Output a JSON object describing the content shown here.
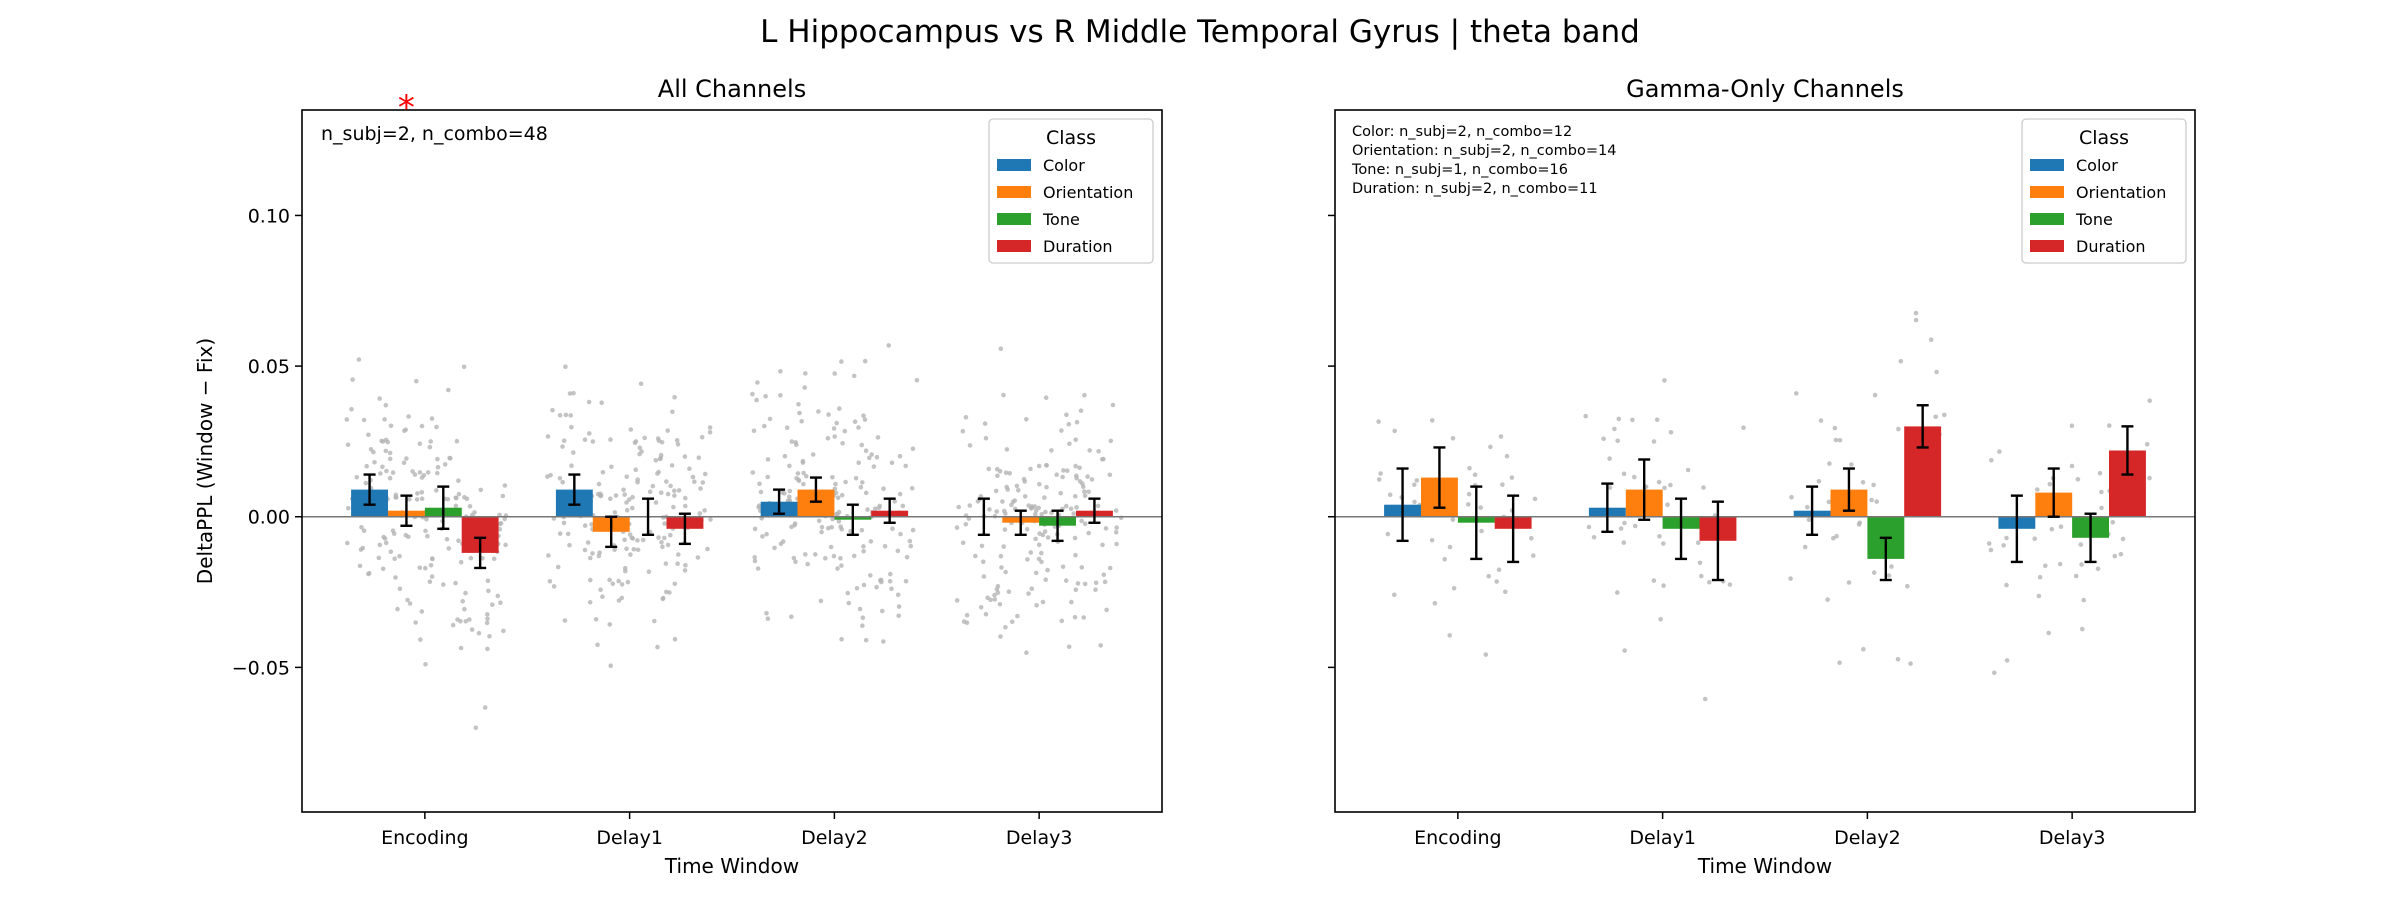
{
  "figure_title": "L Hippocampus vs R Middle Temporal Gyrus  |  theta band",
  "colors": {
    "Color": "#1f77b4",
    "Orientation": "#ff7f0e",
    "Tone": "#2ca02c",
    "Duration": "#d62728",
    "points": "#b4b4b4",
    "significance": "#ff0000"
  },
  "chart_data": [
    {
      "type": "bar",
      "title": "All Channels",
      "xlabel": "Time Window",
      "ylabel": "DeltaPPL (Window − Fix)",
      "ylim": [
        -0.098,
        0.135
      ],
      "y_ticks": [
        0.1,
        0.05,
        0.0,
        -0.05
      ],
      "y_tick_labels": [
        "0.10",
        "0.05",
        "0.00",
        "−0.05"
      ],
      "categories": [
        "Encoding",
        "Delay1",
        "Delay2",
        "Delay3"
      ],
      "legend_title": "Class",
      "legend_position": "top-right",
      "annotation": [
        "n_subj=2, n_combo=48"
      ],
      "significance_marker": "*",
      "significance": [
        {
          "category": "Encoding",
          "series": "Orientation"
        }
      ],
      "series": [
        {
          "name": "Color",
          "values": [
            0.009,
            0.009,
            0.005,
            0.0
          ],
          "errors": [
            0.005,
            0.005,
            0.004,
            0.006
          ]
        },
        {
          "name": "Orientation",
          "values": [
            0.002,
            -0.005,
            0.009,
            -0.002
          ],
          "errors": [
            0.005,
            0.005,
            0.004,
            0.004
          ]
        },
        {
          "name": "Tone",
          "values": [
            0.003,
            0.0,
            -0.001,
            -0.003
          ],
          "errors": [
            0.007,
            0.006,
            0.005,
            0.005
          ]
        },
        {
          "name": "Duration",
          "values": [
            -0.012,
            -0.004,
            0.002,
            0.002
          ],
          "errors": [
            0.005,
            0.005,
            0.004,
            0.004
          ]
        }
      ]
    },
    {
      "type": "bar",
      "title": "Gamma-Only Channels",
      "xlabel": "Time Window",
      "ylabel": "",
      "ylim": [
        -0.098,
        0.135
      ],
      "y_ticks": [
        0.1,
        0.05,
        0.0,
        -0.05
      ],
      "y_tick_labels": [
        "",
        "",
        "",
        ""
      ],
      "categories": [
        "Encoding",
        "Delay1",
        "Delay2",
        "Delay3"
      ],
      "legend_title": "Class",
      "legend_position": "top-right",
      "annotation": [
        "Color: n_subj=2, n_combo=12",
        "Orientation: n_subj=2, n_combo=14",
        "Tone: n_subj=1, n_combo=16",
        "Duration: n_subj=2, n_combo=11"
      ],
      "significance": [],
      "series": [
        {
          "name": "Color",
          "values": [
            0.004,
            0.003,
            0.002,
            -0.004
          ],
          "errors": [
            0.012,
            0.008,
            0.008,
            0.011
          ]
        },
        {
          "name": "Orientation",
          "values": [
            0.013,
            0.009,
            0.009,
            0.008
          ],
          "errors": [
            0.01,
            0.01,
            0.007,
            0.008
          ]
        },
        {
          "name": "Tone",
          "values": [
            -0.002,
            -0.004,
            -0.014,
            -0.007
          ],
          "errors": [
            0.012,
            0.01,
            0.007,
            0.008
          ]
        },
        {
          "name": "Duration",
          "values": [
            -0.004,
            -0.008,
            0.03,
            0.022
          ],
          "errors": [
            0.011,
            0.013,
            0.007,
            0.008
          ]
        }
      ]
    }
  ]
}
